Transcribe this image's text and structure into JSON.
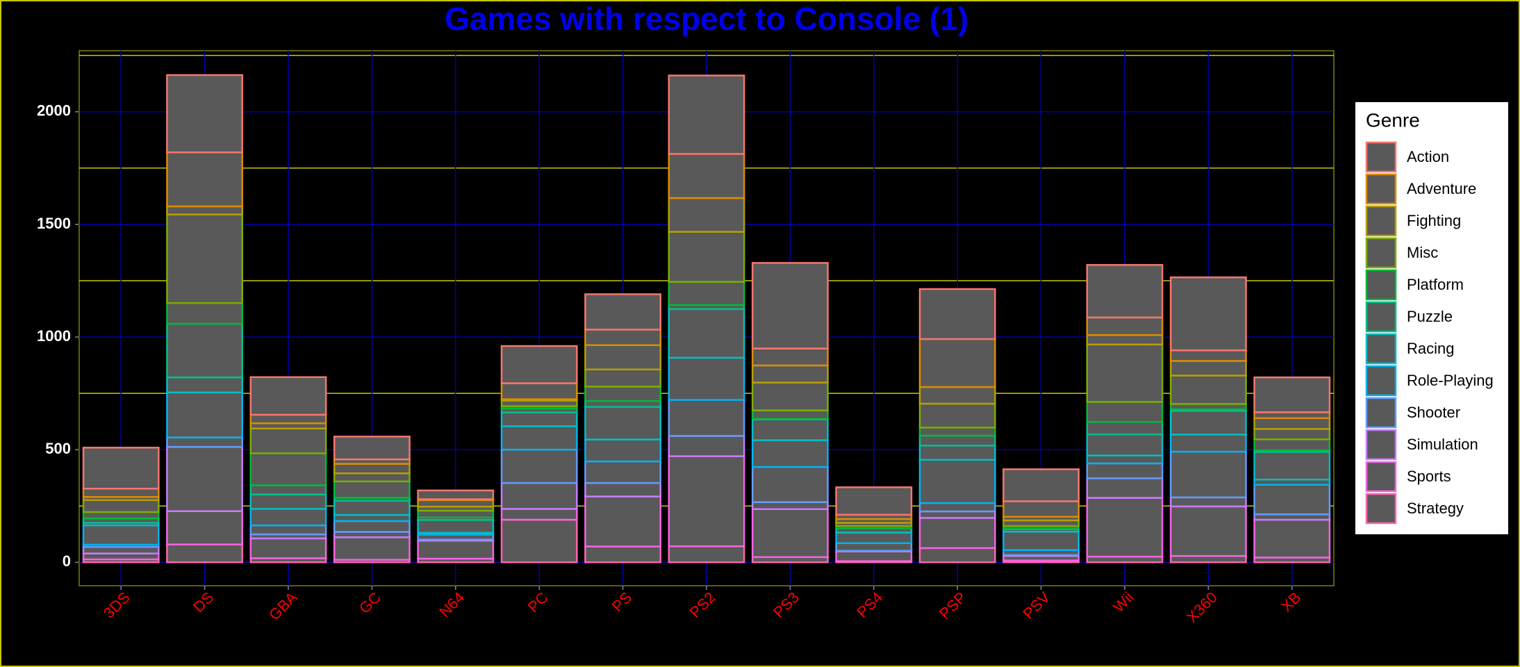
{
  "chart_data": {
    "type": "stacked_bar",
    "title": "Games with respect to Console (1)",
    "legend_title": "Genre",
    "categories": [
      "3DS",
      "DS",
      "GBA",
      "GC",
      "N64",
      "PC",
      "PS",
      "PS2",
      "PS3",
      "PS4",
      "PSP",
      "PSV",
      "Wii",
      "X360",
      "XB"
    ],
    "series": [
      {
        "name": "Action",
        "color": "#F8766D",
        "values": [
          182,
          343,
          167,
          101,
          39,
          165,
          157,
          348,
          380,
          122,
          222,
          142,
          233,
          324,
          155
        ]
      },
      {
        "name": "Adventure",
        "color": "#DE8C00",
        "values": [
          37,
          240,
          38,
          20,
          4,
          71,
          69,
          196,
          75,
          19,
          213,
          69,
          78,
          47,
          26
        ]
      },
      {
        "name": "Fighting",
        "color": "#B79F00",
        "values": [
          14,
          36,
          23,
          42,
          29,
          6,
          108,
          150,
          76,
          17,
          74,
          16,
          42,
          65,
          48
        ]
      },
      {
        "name": "Misc",
        "color": "#7CAE00",
        "values": [
          53,
          393,
          110,
          36,
          18,
          25,
          76,
          222,
          124,
          14,
          106,
          25,
          255,
          126,
          46
        ]
      },
      {
        "name": "Platform",
        "color": "#00BA38",
        "values": [
          28,
          92,
          142,
          73,
          30,
          10,
          64,
          103,
          37,
          10,
          36,
          11,
          89,
          24,
          49
        ]
      },
      {
        "name": "Puzzle",
        "color": "#00C08B",
        "values": [
          20,
          238,
          41,
          13,
          11,
          18,
          26,
          18,
          3,
          0,
          44,
          3,
          55,
          7,
          7
        ]
      },
      {
        "name": "Racing",
        "color": "#00BFC4",
        "values": [
          11,
          67,
          64,
          63,
          57,
          61,
          145,
          216,
          92,
          19,
          63,
          11,
          94,
          105,
          123
        ]
      },
      {
        "name": "Role-Playing",
        "color": "#00B4F0",
        "values": [
          86,
          200,
          73,
          27,
          8,
          104,
          97,
          187,
          119,
          47,
          192,
          82,
          35,
          76,
          23
        ]
      },
      {
        "name": "Shooter",
        "color": "#619CFF",
        "values": [
          10,
          42,
          40,
          48,
          22,
          148,
          96,
          160,
          156,
          34,
          37,
          22,
          66,
          203,
          131
        ]
      },
      {
        "name": "Simulation",
        "color": "#C77CFF",
        "values": [
          29,
          285,
          18,
          24,
          5,
          115,
          60,
          90,
          31,
          3,
          29,
          4,
          87,
          40,
          24
        ]
      },
      {
        "name": "Sports",
        "color": "#F564E3",
        "values": [
          26,
          148,
          88,
          100,
          80,
          48,
          222,
          400,
          213,
          43,
          134,
          20,
          261,
          220,
          168
        ]
      },
      {
        "name": "Strategy",
        "color": "#FF64B0",
        "values": [
          13,
          79,
          18,
          11,
          16,
          189,
          70,
          71,
          23,
          5,
          63,
          8,
          25,
          28,
          21
        ]
      }
    ],
    "ylim": [
      -104,
      2271
    ],
    "yticks": [
      0,
      500,
      1000,
      1500,
      2000
    ],
    "minor_yticks": [
      250,
      750,
      1250,
      1750,
      2250
    ],
    "grid": true
  }
}
